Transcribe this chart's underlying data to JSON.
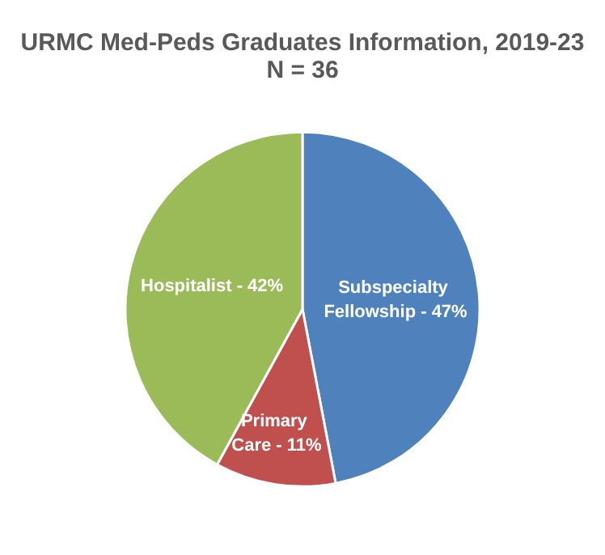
{
  "chart_data": {
    "type": "pie",
    "title": "URMC Med-Peds Graduates Information, 2019-23",
    "subtitle": "N = 36",
    "categories": [
      "Subspecialty Fellowship",
      "Primary Care",
      "Hospitalist"
    ],
    "values": [
      47,
      11,
      42
    ],
    "colors": [
      "#4f81bd",
      "#c0504d",
      "#9bbb59"
    ],
    "value_labels": [
      "47%",
      "11%",
      "42%"
    ],
    "legend": false
  }
}
